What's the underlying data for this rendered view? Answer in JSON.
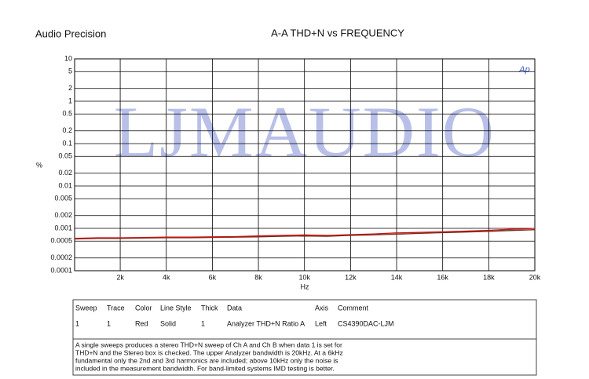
{
  "chart_data": {
    "type": "line",
    "brand": "Audio Precision",
    "title": "A-A THD+N vs FREQUENCY",
    "watermark": "LJMAUDIO",
    "logo": "Ap",
    "x_label": "Hz",
    "y_label": "%",
    "x": [
      20,
      1000,
      2000,
      3000,
      4000,
      5000,
      6000,
      7000,
      8000,
      9000,
      10000,
      11000,
      12000,
      13000,
      14000,
      15000,
      16000,
      17000,
      18000,
      19000,
      20000
    ],
    "series": [
      {
        "color": "#d01010",
        "values": [
          0.00058,
          0.0006,
          0.0006,
          0.00061,
          0.00062,
          0.00062,
          0.00063,
          0.00064,
          0.00066,
          0.00068,
          0.0007,
          0.00068,
          0.00071,
          0.00074,
          0.00078,
          0.0008,
          0.00083,
          0.00086,
          0.0009,
          0.00095,
          0.001
        ]
      },
      {
        "color": "#6a2a1a",
        "values": [
          0.00056,
          0.00058,
          0.00058,
          0.00059,
          0.0006,
          0.0006,
          0.00061,
          0.00062,
          0.00063,
          0.00065,
          0.00066,
          0.00065,
          0.00068,
          0.0007,
          0.00073,
          0.00076,
          0.00079,
          0.00082,
          0.00085,
          0.00089,
          0.00093
        ]
      }
    ],
    "xlim": [
      20,
      20000
    ],
    "xticks": [
      {
        "value": 2000,
        "label": "2k"
      },
      {
        "value": 4000,
        "label": "4k"
      },
      {
        "value": 6000,
        "label": "6k"
      },
      {
        "value": 8000,
        "label": "8k"
      },
      {
        "value": 10000,
        "label": "10k"
      },
      {
        "value": 12000,
        "label": "12k"
      },
      {
        "value": 14000,
        "label": "14k"
      },
      {
        "value": 16000,
        "label": "16k"
      },
      {
        "value": 18000,
        "label": "18k"
      },
      {
        "value": 20000,
        "label": "20k"
      }
    ],
    "ylim": [
      0.0001,
      10
    ],
    "y_log": true,
    "yticks": [
      10,
      5,
      2,
      1,
      0.5,
      0.2,
      0.1,
      0.05,
      0.02,
      0.01,
      0.005,
      0.002,
      0.001,
      0.0005,
      0.0002,
      0.0001
    ],
    "grid": true
  },
  "legend_table": {
    "header": [
      "Sweep",
      "Trace",
      "Color",
      "Line Style",
      "Thick",
      "Data",
      "Axis",
      "Comment"
    ],
    "rows": [
      [
        "1",
        "1",
        "Red",
        "Solid",
        "1",
        "Analyzer THD+N Ratio A",
        "Left",
        "CS4390DAC-LJM"
      ]
    ],
    "note": [
      "A single sweeps produces a stereo THD+N sweep of Ch A and Ch B when data 1 is set for",
      "THD+N and the Stereo box is checked.  The upper Analyzer bandwidth is 20kHz.  At a 6kHz",
      "fundamental only the 2nd and 3rd harmonics are included; above 10kHz only the noise is",
      "included in the measurement bandwidth.  For band-limited systems IMD testing is better."
    ]
  }
}
